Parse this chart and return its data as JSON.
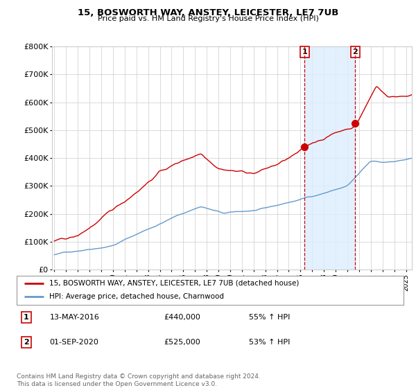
{
  "title": "15, BOSWORTH WAY, ANSTEY, LEICESTER, LE7 7UB",
  "subtitle": "Price paid vs. HM Land Registry's House Price Index (HPI)",
  "ylim": [
    0,
    800000
  ],
  "xlim_start": 1995.0,
  "xlim_end": 2025.5,
  "hpi_color": "#6699cc",
  "hpi_fill_color": "#ddeeff",
  "price_color": "#cc0000",
  "shade_color": "#ddeeff",
  "transaction_1": {
    "date_x": 2016.36,
    "price": 440000,
    "label": "1"
  },
  "transaction_2": {
    "date_x": 2020.67,
    "price": 525000,
    "label": "2"
  },
  "legend_line1": "15, BOSWORTH WAY, ANSTEY, LEICESTER, LE7 7UB (detached house)",
  "legend_line2": "HPI: Average price, detached house, Charnwood",
  "annot_1_date": "13-MAY-2016",
  "annot_1_price": "£440,000",
  "annot_1_hpi": "55% ↑ HPI",
  "annot_2_date": "01-SEP-2020",
  "annot_2_price": "£525,000",
  "annot_2_hpi": "53% ↑ HPI",
  "footer": "Contains HM Land Registry data © Crown copyright and database right 2024.\nThis data is licensed under the Open Government Licence v3.0."
}
